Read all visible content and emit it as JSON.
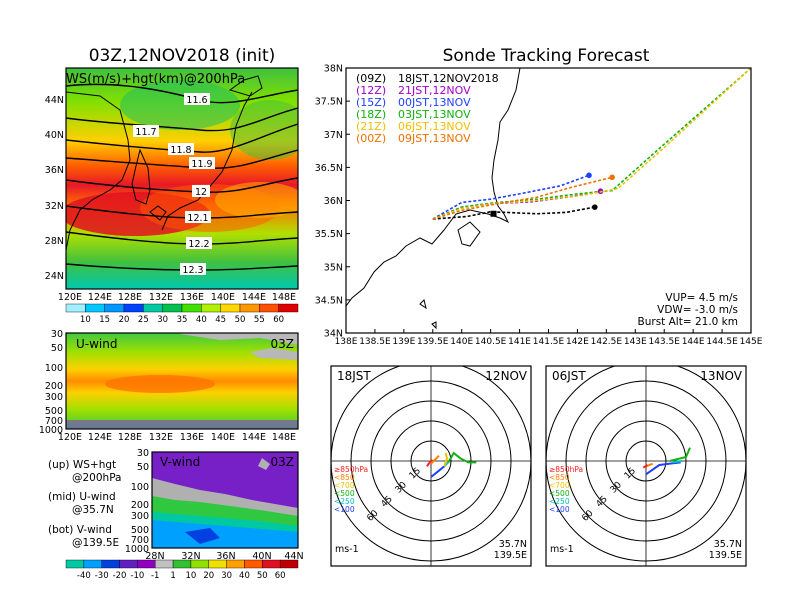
{
  "left": {
    "title": "03Z,12NOV2018 (init)",
    "map_label": "WS(m/s)+hgt(km)@200hPa",
    "map_lat_ticks": [
      "44N",
      "40N",
      "36N",
      "32N",
      "28N",
      "24N"
    ],
    "map_lon_ticks": [
      "120E",
      "124E",
      "128E",
      "132E",
      "136E",
      "140E",
      "144E",
      "148E"
    ],
    "contour_labels": [
      "11.6",
      "11.7",
      "11.8",
      "11.9",
      "12",
      "12.1",
      "12.2",
      "12.3"
    ],
    "ws_colorbar": [
      "10",
      "15",
      "20",
      "25",
      "30",
      "35",
      "40",
      "45",
      "50",
      "55",
      "60"
    ],
    "ws_colors": [
      "#a0f0ff",
      "#00c8ff",
      "#0096ff",
      "#0040ff",
      "#00c8a0",
      "#00c050",
      "#40e000",
      "#b0f000",
      "#ffd700",
      "#ff9600",
      "#ff5000",
      "#e00000"
    ],
    "u_panel": {
      "label": "U-wind",
      "time": "03Z",
      "p_ticks": [
        "30",
        "50",
        "100",
        "200",
        "300",
        "500",
        "700",
        "1000"
      ],
      "lon_ticks": [
        "120E",
        "124E",
        "128E",
        "132E",
        "136E",
        "140E",
        "144E",
        "148E"
      ]
    },
    "v_panel": {
      "label": "V-wind",
      "time": "03Z",
      "p_ticks": [
        "30",
        "50",
        "100",
        "200",
        "300",
        "500",
        "700",
        "1000"
      ],
      "lat_ticks": [
        "28N",
        "32N",
        "36N",
        "40N",
        "44N"
      ]
    },
    "legend_lines": [
      [
        "(up) WS+hgt",
        "@200hPa"
      ],
      [
        "(mid) U-wind",
        "@35.7N"
      ],
      [
        "(bot) V-wind",
        "@139.5E"
      ]
    ],
    "wind_colorbar": [
      "-40",
      "-30",
      "-20",
      "-10",
      "-1",
      "1",
      "10",
      "20",
      "30",
      "40",
      "50",
      "60"
    ],
    "wind_colors": [
      "#00c8a0",
      "#00a0ff",
      "#0040e0",
      "#6020c0",
      "#9000c0",
      "#c0c0c0",
      "#30c030",
      "#90e000",
      "#f0e000",
      "#ffa000",
      "#ff5a00",
      "#e01020",
      "#c00000"
    ]
  },
  "main": {
    "title": "Sonde Tracking Forecast",
    "legend": [
      {
        "utc": "(09Z)",
        "jst": "18JST,12NOV2018",
        "color": "#000000"
      },
      {
        "utc": "(12Z)",
        "jst": "21JST,12NOV",
        "color": "#a000c8"
      },
      {
        "utc": "(15Z)",
        "jst": "00JST,13NOV",
        "color": "#2040ff"
      },
      {
        "utc": "(18Z)",
        "jst": "03JST,13NOV",
        "color": "#10b010"
      },
      {
        "utc": "(21Z)",
        "jst": "06JST,13NOV",
        "color": "#f0c000"
      },
      {
        "utc": "(00Z)",
        "jst": "09JST,13NOV",
        "color": "#f07000"
      }
    ],
    "lat_ticks": [
      "38N",
      "37.5N",
      "37N",
      "36.5N",
      "36N",
      "35.5N",
      "35N",
      "34.5N",
      "34N"
    ],
    "lon_ticks": [
      "138E",
      "138.5E",
      "139E",
      "139.5E",
      "140E",
      "140.5E",
      "141E",
      "141.5E",
      "142E",
      "142.5E",
      "143E",
      "143.5E",
      "144E",
      "144.5E",
      "145E"
    ],
    "params": [
      "VUP= 4.5 m/s",
      "VDW= -3.0 m/s",
      "Burst Alt= 21.0 km"
    ]
  },
  "chart_data": {
    "type": "line",
    "title": "Sonde Tracking Forecast",
    "xlabel": "",
    "ylabel": "",
    "xlim": [
      138,
      145
    ],
    "ylim": [
      34,
      38
    ],
    "series": [
      {
        "name": "(09Z) 18JST,12NOV2018",
        "color": "#000000",
        "style": "dashed",
        "x": [
          139.5,
          140.1,
          140.5,
          141.3,
          141.8,
          142.3
        ],
        "y": [
          35.72,
          35.76,
          35.83,
          35.8,
          35.82,
          35.9
        ]
      },
      {
        "name": "(12Z) 21JST,12NOV",
        "color": "#a000c8",
        "style": "dashed",
        "x": [
          139.5,
          140.0,
          140.5,
          141.2,
          141.9,
          142.4
        ],
        "y": [
          35.72,
          35.9,
          35.95,
          35.98,
          36.06,
          36.14
        ]
      },
      {
        "name": "(15Z) 00JST,13NOV",
        "color": "#2040ff",
        "style": "dashed",
        "x": [
          139.5,
          140.0,
          140.5,
          141.0,
          141.7,
          142.2
        ],
        "y": [
          35.72,
          35.97,
          36.02,
          36.1,
          36.22,
          36.38
        ]
      },
      {
        "name": "(18Z) 03JST,13NOV",
        "color": "#10b010",
        "style": "dashed",
        "x": [
          139.5,
          140.0,
          140.5,
          141.3,
          142.0,
          142.6,
          143.5,
          145.0
        ],
        "y": [
          35.72,
          35.9,
          35.96,
          36.02,
          36.1,
          36.15,
          36.85,
          38.0
        ]
      },
      {
        "name": "(21Z) 06JST,13NOV",
        "color": "#f0c000",
        "style": "dashed",
        "x": [
          139.5,
          140.0,
          140.5,
          141.3,
          142.1,
          142.7,
          143.5,
          145.0
        ],
        "y": [
          35.72,
          35.88,
          35.95,
          36.0,
          36.08,
          36.18,
          36.8,
          38.0
        ]
      },
      {
        "name": "(00Z) 09JST,13NOV",
        "color": "#f07000",
        "style": "dashed",
        "x": [
          139.5,
          140.0,
          140.6,
          141.3,
          141.9,
          142.6
        ],
        "y": [
          35.72,
          35.85,
          35.95,
          36.05,
          36.2,
          36.35
        ]
      }
    ]
  },
  "hodographs": [
    {
      "jst": "18JST",
      "date": "12NOV",
      "ring_labels": [
        "15",
        "30",
        "45",
        "60"
      ],
      "pressure_legend": [
        {
          "label": "≥850hPa",
          "color": "#ff2020"
        },
        {
          "label": "<850",
          "color": "#ff8000"
        },
        {
          "label": "<700",
          "color": "#f0c000"
        },
        {
          "label": "<500",
          "color": "#10b010"
        },
        {
          "label": "<250",
          "color": "#00c0c0"
        },
        {
          "label": "<100",
          "color": "#2040ff"
        }
      ],
      "unit": "ms-1",
      "location_lat": "35.7N",
      "location_lon": "139.5E",
      "trace": [
        {
          "color": "#2040ff",
          "u": [
            0,
            5,
            10
          ],
          "v": [
            -12,
            -8,
            -4
          ]
        },
        {
          "color": "#00c0c0",
          "u": [
            10,
            13
          ],
          "v": [
            -4,
            -1
          ]
        },
        {
          "color": "#10b010",
          "u": [
            13,
            17,
            22,
            28,
            34
          ],
          "v": [
            -1,
            6,
            2,
            -1,
            -1
          ]
        },
        {
          "color": "#f0c000",
          "u": [
            10,
            12,
            11
          ],
          "v": [
            -4,
            2,
            6
          ]
        },
        {
          "color": "#ff8000",
          "u": [
            0,
            3,
            6
          ],
          "v": [
            -2,
            1,
            4
          ]
        },
        {
          "color": "#ff2020",
          "u": [
            -3,
            -1,
            1
          ],
          "v": [
            -4,
            -1,
            1
          ]
        }
      ]
    },
    {
      "jst": "06JST",
      "date": "13NOV",
      "ring_labels": [
        "15",
        "30",
        "45",
        "60"
      ],
      "pressure_legend": [
        {
          "label": "≥850hPa",
          "color": "#ff2020"
        },
        {
          "label": "<850",
          "color": "#ff8000"
        },
        {
          "label": "<700",
          "color": "#f0c000"
        },
        {
          "label": "<500",
          "color": "#10b010"
        },
        {
          "label": "<250",
          "color": "#00c0c0"
        },
        {
          "label": "<100",
          "color": "#2040ff"
        }
      ],
      "unit": "ms-1",
      "location_lat": "35.7N",
      "location_lon": "139.5E",
      "trace": [
        {
          "color": "#2040ff",
          "u": [
            0,
            10,
            18,
            26
          ],
          "v": [
            -10,
            -3,
            -2,
            -1
          ]
        },
        {
          "color": "#00c0c0",
          "u": [
            20,
            27
          ],
          "v": [
            -1,
            0
          ]
        },
        {
          "color": "#10b010",
          "u": [
            18,
            26,
            30,
            33
          ],
          "v": [
            0,
            2,
            3,
            10
          ]
        },
        {
          "color": "#ff8000",
          "u": [
            0,
            5
          ],
          "v": [
            -4,
            -2
          ]
        },
        {
          "color": "#ff2020",
          "u": [
            -2,
            1
          ],
          "v": [
            -5,
            -3
          ]
        }
      ]
    }
  ]
}
